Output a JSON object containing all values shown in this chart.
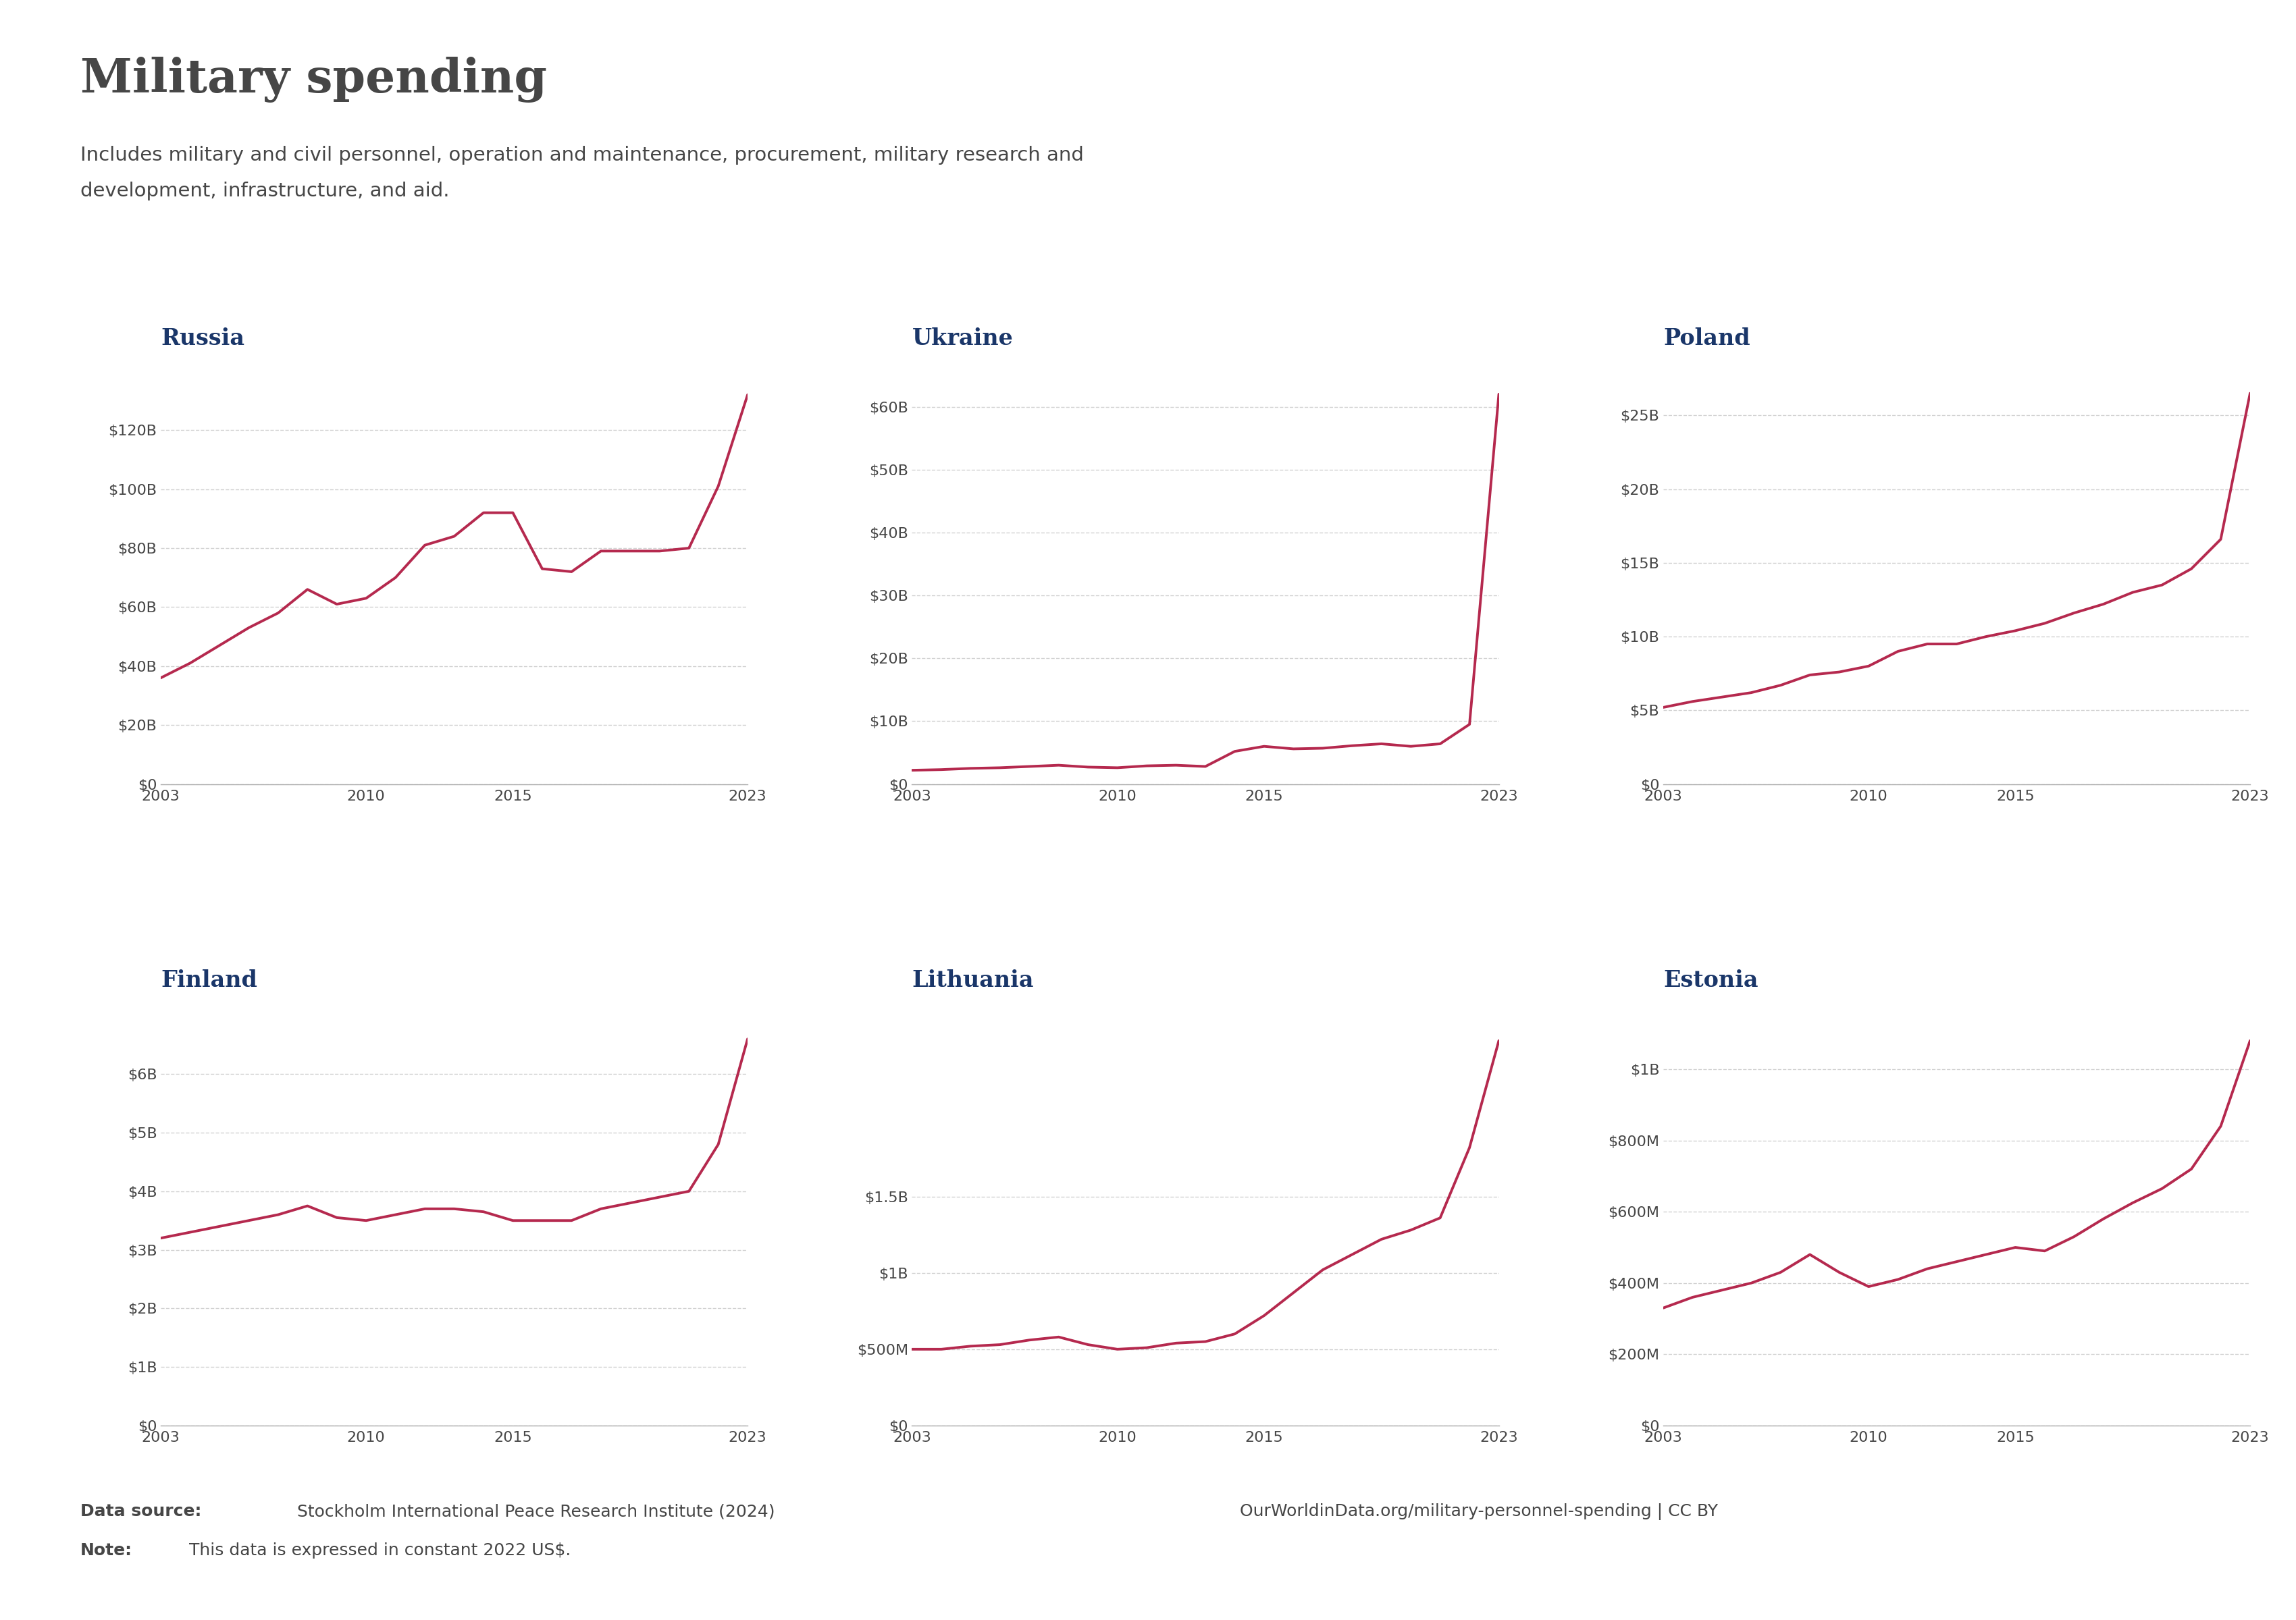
{
  "years": [
    2003,
    2004,
    2005,
    2006,
    2007,
    2008,
    2009,
    2010,
    2011,
    2012,
    2013,
    2014,
    2015,
    2016,
    2017,
    2018,
    2019,
    2020,
    2021,
    2022,
    2023
  ],
  "russia": [
    36,
    41,
    47,
    53,
    58,
    66,
    61,
    63,
    70,
    81,
    84,
    92,
    92,
    73,
    72,
    79,
    79,
    79,
    80,
    101,
    132
  ],
  "ukraine": [
    2.2,
    2.3,
    2.5,
    2.6,
    2.8,
    3.0,
    2.7,
    2.6,
    2.9,
    3.0,
    2.8,
    5.2,
    6.0,
    5.6,
    5.7,
    6.1,
    6.4,
    6.0,
    6.4,
    9.5,
    62
  ],
  "poland": [
    5.2,
    5.6,
    5.9,
    6.2,
    6.7,
    7.4,
    7.6,
    8.0,
    9.0,
    9.5,
    9.5,
    10.0,
    10.4,
    10.9,
    11.6,
    12.2,
    13.0,
    13.5,
    14.6,
    16.6,
    26.5
  ],
  "finland": [
    3.2,
    3.3,
    3.4,
    3.5,
    3.6,
    3.75,
    3.55,
    3.5,
    3.6,
    3.7,
    3.7,
    3.65,
    3.5,
    3.5,
    3.5,
    3.7,
    3.8,
    3.9,
    4.0,
    4.8,
    6.6
  ],
  "lithuania": [
    0.5,
    0.5,
    0.52,
    0.53,
    0.56,
    0.58,
    0.53,
    0.5,
    0.51,
    0.54,
    0.55,
    0.6,
    0.72,
    0.87,
    1.02,
    1.12,
    1.22,
    1.28,
    1.36,
    1.82,
    2.52
  ],
  "estonia_m": [
    330,
    360,
    380,
    400,
    430,
    480,
    430,
    390,
    410,
    440,
    460,
    480,
    500,
    490,
    530,
    580,
    625,
    665,
    720,
    840,
    1080
  ],
  "title": "Military spending",
  "subtitle_line1": "Includes military and civil personnel, operation and maintenance, procurement, military research and",
  "subtitle_line2": "development, infrastructure, and aid.",
  "line_color": "#b5294e",
  "title_color": "#464646",
  "subtitle_color": "#464646",
  "country_title_color": "#1a3669",
  "bg_color": "#ffffff",
  "grid_color": "#cccccc",
  "tick_color": "#464646",
  "logo_bg": "#1a3669",
  "logo_bar_color": "#c0392b",
  "datasource_bold": "Data source:",
  "datasource_rest": " Stockholm International Peace Research Institute (2024)",
  "footer_right": "OurWorldinData.org/military-personnel-spending | CC BY",
  "note_bold": "Note:",
  "note_rest": " This data is expressed in constant 2022 US$."
}
